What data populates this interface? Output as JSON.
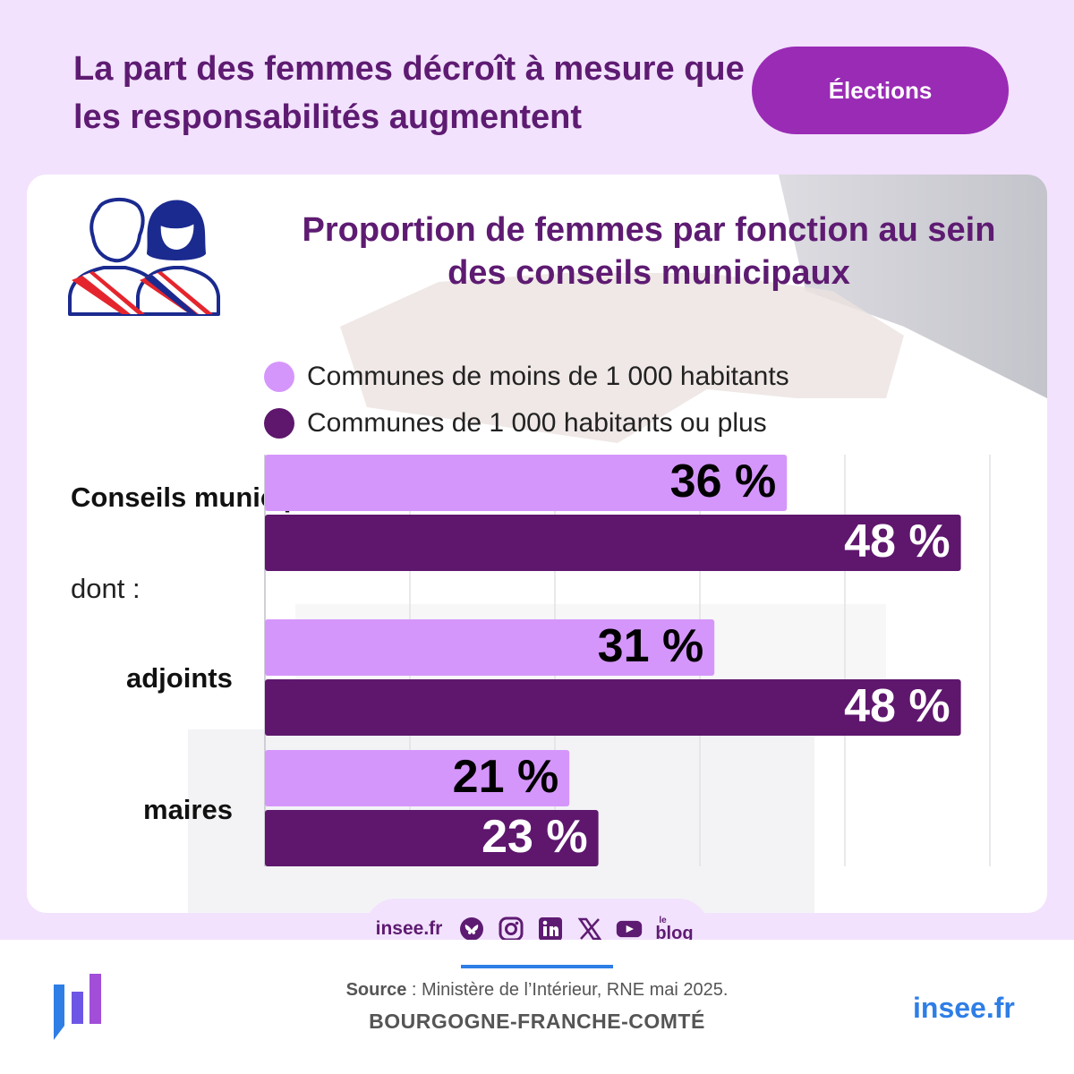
{
  "header": {
    "title": "La part des femmes décroît à mesure que les responsabilités augmentent",
    "tag": "Élections"
  },
  "card": {
    "subtitle": "Proportion de femmes par fonction au sein des conseils municipaux",
    "icon": "elected-officials-icon",
    "dont_label": "dont :"
  },
  "colors": {
    "small_communes": "#d596fb",
    "large_communes": "#5e176d",
    "title": "#5e1b72",
    "accent_blue": "#2e7ee6"
  },
  "chart_data": {
    "type": "bar",
    "orientation": "horizontal",
    "categories": [
      "Conseils municipaux",
      "adjoints",
      "maires"
    ],
    "series": [
      {
        "name": "Communes de moins de 1 000 habitants",
        "values": [
          36,
          31,
          21
        ],
        "labels": [
          "36 %",
          "31 %",
          "21 %"
        ]
      },
      {
        "name": "Communes de 1 000 habitants ou plus",
        "values": [
          48,
          48,
          23
        ],
        "labels": [
          "48 %",
          "48 %",
          "23 %"
        ]
      }
    ],
    "xlim": [
      0,
      50
    ],
    "grid": true,
    "legend_position": "top"
  },
  "social": {
    "site": "insee.fr",
    "icons": [
      "bluesky-icon",
      "instagram-icon",
      "linkedin-icon",
      "x-icon",
      "youtube-icon",
      "blog-icon"
    ],
    "blog_label": "blog",
    "blog_prefix": "le"
  },
  "footer": {
    "source_label": "Source",
    "source_text": " : Ministère de l’Intérieur, RNE mai 2025.",
    "region": "BOURGOGNE-FRANCHE-COMTÉ",
    "url": "insee.fr",
    "logo": "insee-logo-icon"
  }
}
